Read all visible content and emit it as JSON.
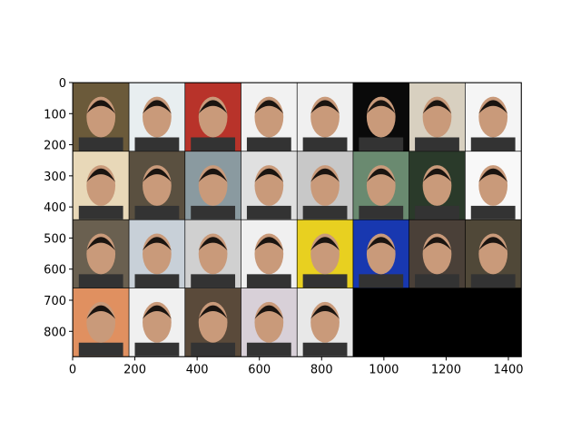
{
  "chart_data": {
    "type": "image",
    "xlim": [
      0,
      1442
    ],
    "ylim": [
      882,
      0
    ],
    "xticks": [
      0,
      200,
      400,
      600,
      800,
      1000,
      1200,
      1400
    ],
    "yticks": [
      0,
      100,
      200,
      300,
      400,
      500,
      600,
      700,
      800
    ],
    "background": "#000000",
    "nrow": 8,
    "image_colors": [
      "#6b5a3a",
      "#e8eef0",
      "#b8332a",
      "#f2f2f2",
      "#f0f0f0",
      "#0a0a0a",
      "#d8d0c0",
      "#f5f5f5",
      "#e8d8b8",
      "#5a5040",
      "#8a9aa0",
      "#e0e0e0",
      "#c8c8c8",
      "#6a8a70",
      "#2a3a2a",
      "#f8f8f8",
      "#6a6050",
      "#c8d0d8",
      "#d0d0d0",
      "#f0f0f0",
      "#e8d020",
      "#1838b0",
      "#4a4038",
      "#504838",
      "#e09060",
      "#f0f0f0",
      "#5a4a3a",
      "#d8d0d8",
      "#e8e8e8"
    ]
  }
}
